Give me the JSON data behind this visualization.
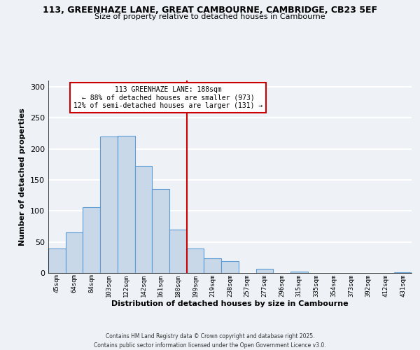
{
  "title_line1": "113, GREENHAZE LANE, GREAT CAMBOURNE, CAMBRIDGE, CB23 5EF",
  "title_line2": "Size of property relative to detached houses in Cambourne",
  "xlabel": "Distribution of detached houses by size in Cambourne",
  "ylabel": "Number of detached properties",
  "categories": [
    "45sqm",
    "64sqm",
    "84sqm",
    "103sqm",
    "122sqm",
    "142sqm",
    "161sqm",
    "180sqm",
    "199sqm",
    "219sqm",
    "238sqm",
    "257sqm",
    "277sqm",
    "296sqm",
    "315sqm",
    "335sqm",
    "354sqm",
    "373sqm",
    "392sqm",
    "412sqm",
    "431sqm"
  ],
  "values": [
    39,
    65,
    106,
    220,
    221,
    172,
    135,
    70,
    39,
    24,
    19,
    0,
    7,
    0,
    2,
    0,
    0,
    0,
    0,
    0,
    1
  ],
  "bar_color": "#c8d8e8",
  "bar_edge_color": "#5b9bd5",
  "ylim": [
    0,
    310
  ],
  "yticks": [
    0,
    50,
    100,
    150,
    200,
    250,
    300
  ],
  "property_line_x": 7.5,
  "annotation_title": "113 GREENHAZE LANE: 188sqm",
  "annotation_line2": "← 88% of detached houses are smaller (973)",
  "annotation_line3": "12% of semi-detached houses are larger (131) →",
  "footer_line1": "Contains HM Land Registry data © Crown copyright and database right 2025.",
  "footer_line2": "Contains public sector information licensed under the Open Government Licence v3.0.",
  "background_color": "#eef2f7",
  "grid_color": "#ffffff",
  "property_line_color": "#cc0000",
  "annotation_box_color": "#cc0000"
}
